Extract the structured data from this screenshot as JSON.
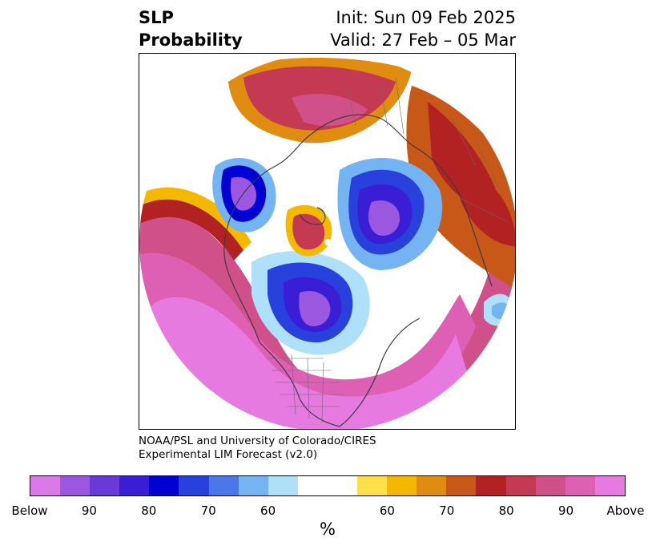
{
  "title": {
    "left_line1": "SLP",
    "left_line2": "Probability",
    "right_line1": "Init: Sun 09 Feb 2025",
    "right_line2": "Valid: 27 Feb – 05 Mar"
  },
  "credit": {
    "line1": "NOAA/PSL and University of Colorado/CIRES",
    "line2": "Experimental LIM Forecast (v2.0)"
  },
  "colorbar": {
    "colors": [
      "#d97ae6",
      "#9b57e0",
      "#6a3ad9",
      "#3a1ed6",
      "#0000d2",
      "#2840dc",
      "#4a78e8",
      "#74b4f2",
      "#aee0fa",
      "#ffffff",
      "#ffe04a",
      "#f5b800",
      "#e08c10",
      "#c85818",
      "#b22222",
      "#c43a52",
      "#d0508a",
      "#de60b4",
      "#e67ae0"
    ],
    "tick_labels": [
      "Below",
      "90",
      "80",
      "70",
      "60",
      "60",
      "70",
      "80",
      "90",
      "Above"
    ],
    "unit": "%"
  },
  "map": {
    "projection": "north-polar-stereographic",
    "regions": [
      {
        "name": "north-pacific-high",
        "category": "above-90"
      },
      {
        "name": "northeast-canada-low",
        "category": "below-80"
      },
      {
        "name": "northwest-canada-low",
        "category": "below-80"
      },
      {
        "name": "eurasia-arctic-low",
        "category": "below-90"
      },
      {
        "name": "europe-high",
        "category": "above-80"
      },
      {
        "name": "siberia-high",
        "category": "above-70"
      },
      {
        "name": "arctic-high-cell",
        "category": "above-80"
      },
      {
        "name": "united-states-high",
        "category": "above-90"
      }
    ]
  }
}
